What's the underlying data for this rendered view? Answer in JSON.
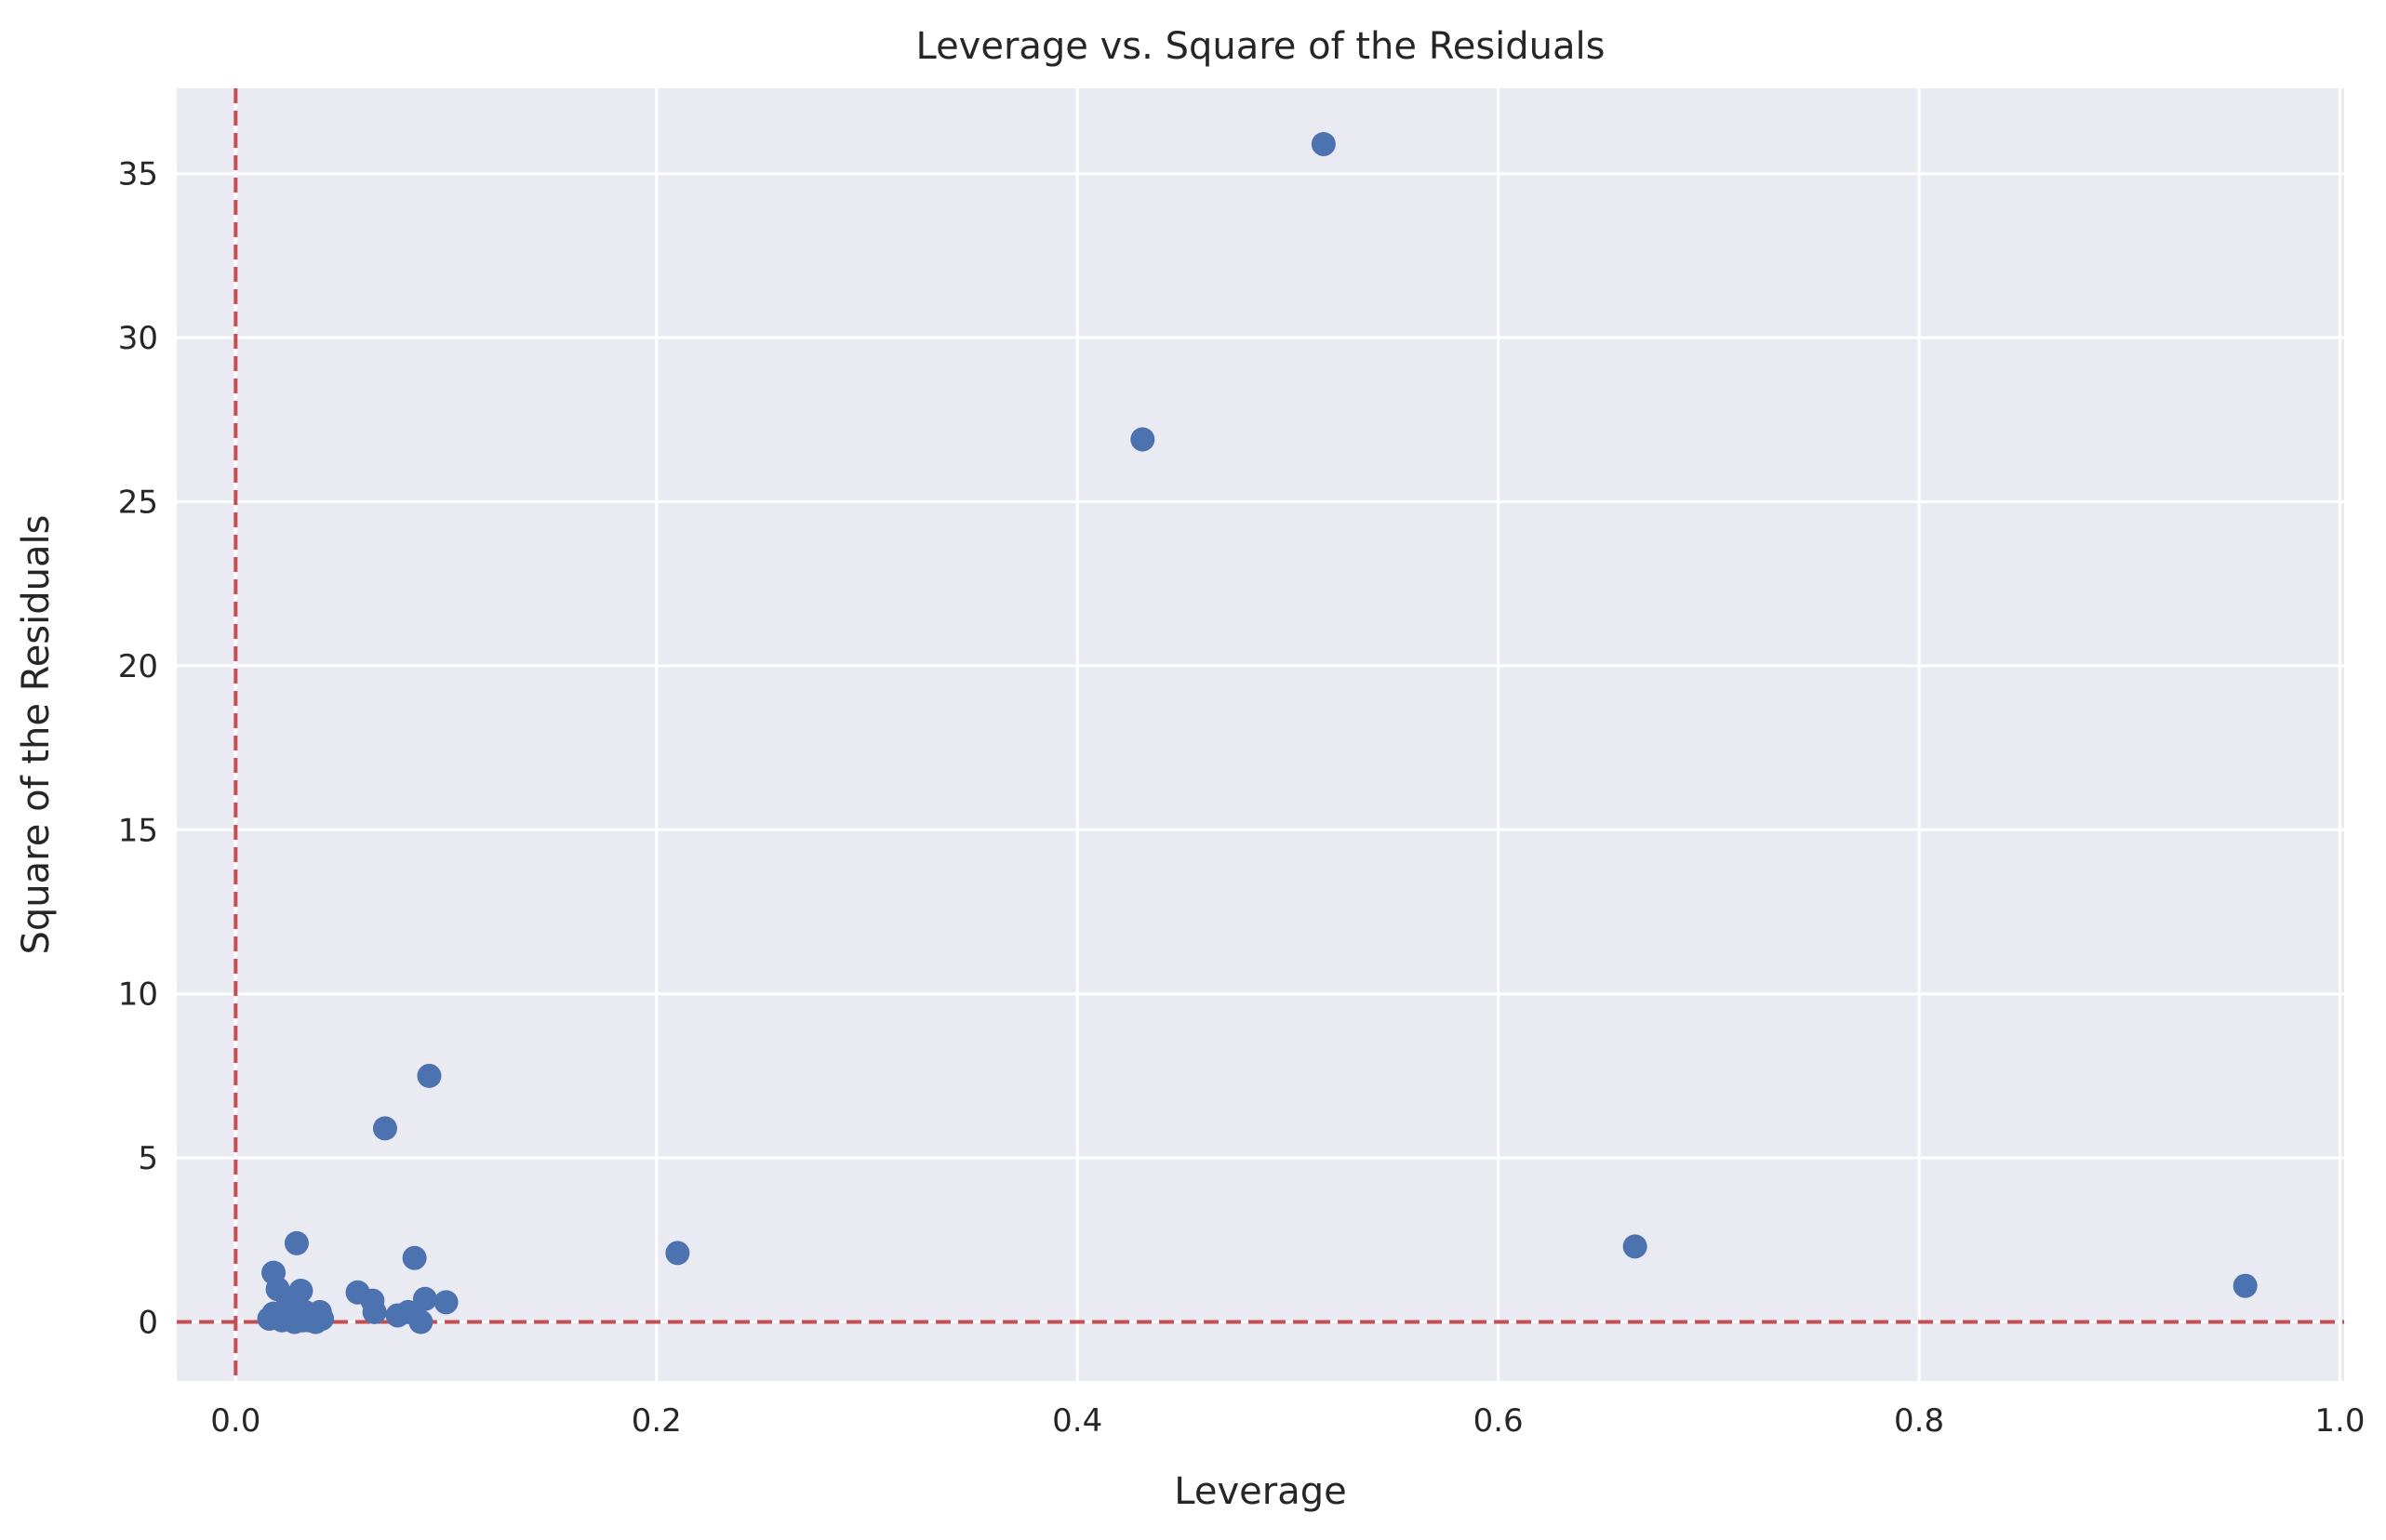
{
  "chart_data": {
    "type": "scatter",
    "title": "Leverage vs. Square of the Residuals",
    "xlabel": "Leverage",
    "ylabel": "Square of the Residuals",
    "xlim": [
      -0.028,
      1.002
    ],
    "ylim": [
      -1.8,
      37.6
    ],
    "xticks": [
      0.0,
      0.2,
      0.4,
      0.6,
      0.8,
      1.0
    ],
    "xtick_labels": [
      "0.0",
      "0.2",
      "0.4",
      "0.6",
      "0.8",
      "1.0"
    ],
    "yticks": [
      0,
      5,
      10,
      15,
      20,
      25,
      30,
      35
    ],
    "ytick_labels": [
      "0",
      "5",
      "10",
      "15",
      "20",
      "25",
      "30",
      "35"
    ],
    "grid": true,
    "reference_lines": [
      {
        "orientation": "vertical",
        "value": 0.0,
        "style": "dashed",
        "color": "#c44e52"
      },
      {
        "orientation": "horizontal",
        "value": 0.0,
        "style": "dashed",
        "color": "#c44e52"
      }
    ],
    "series": [
      {
        "color": "#4c72b0",
        "points": [
          {
            "x": 0.517,
            "y": 35.9
          },
          {
            "x": 0.431,
            "y": 26.9
          },
          {
            "x": 0.092,
            "y": 7.5
          },
          {
            "x": 0.071,
            "y": 5.9
          },
          {
            "x": 0.029,
            "y": 2.4
          },
          {
            "x": 0.21,
            "y": 2.1
          },
          {
            "x": 0.665,
            "y": 2.3
          },
          {
            "x": 0.955,
            "y": 1.1
          },
          {
            "x": 0.085,
            "y": 1.95
          },
          {
            "x": 0.018,
            "y": 1.5
          },
          {
            "x": 0.02,
            "y": 1.0
          },
          {
            "x": 0.031,
            "y": 0.95
          },
          {
            "x": 0.058,
            "y": 0.9
          },
          {
            "x": 0.065,
            "y": 0.65
          },
          {
            "x": 0.09,
            "y": 0.7
          },
          {
            "x": 0.1,
            "y": 0.6
          },
          {
            "x": 0.025,
            "y": 0.6
          },
          {
            "x": 0.04,
            "y": 0.3
          },
          {
            "x": 0.066,
            "y": 0.3
          },
          {
            "x": 0.077,
            "y": 0.2
          },
          {
            "x": 0.082,
            "y": 0.3
          },
          {
            "x": 0.088,
            "y": 0.0
          },
          {
            "x": 0.016,
            "y": 0.1
          },
          {
            "x": 0.018,
            "y": 0.25
          },
          {
            "x": 0.022,
            "y": 0.05
          },
          {
            "x": 0.024,
            "y": 0.35
          },
          {
            "x": 0.026,
            "y": 0.1
          },
          {
            "x": 0.028,
            "y": 0.0
          },
          {
            "x": 0.03,
            "y": 0.15
          },
          {
            "x": 0.032,
            "y": 0.05
          },
          {
            "x": 0.033,
            "y": 0.3
          },
          {
            "x": 0.035,
            "y": 0.05
          },
          {
            "x": 0.036,
            "y": 0.1
          },
          {
            "x": 0.038,
            "y": 0.0
          },
          {
            "x": 0.041,
            "y": 0.1
          },
          {
            "x": 0.027,
            "y": 0.55
          },
          {
            "x": 0.021,
            "y": 0.2
          }
        ]
      }
    ]
  }
}
